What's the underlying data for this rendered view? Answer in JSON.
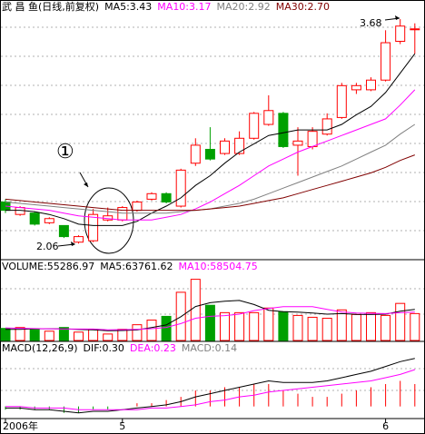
{
  "chart_data": [
    {
      "type": "candlestick",
      "title": "武 昌 鱼(日线,前复权)",
      "categories": [
        "2006年",
        null,
        null,
        null,
        null,
        null,
        null,
        null,
        "5",
        null,
        null,
        null,
        null,
        null,
        null,
        null,
        null,
        null,
        null,
        null,
        null,
        null,
        null,
        null,
        null,
        null,
        "6",
        null,
        null
      ],
      "open": [
        2.36,
        2.27,
        2.28,
        2.21,
        2.19,
        2.07,
        2.08,
        2.23,
        2.23,
        2.3,
        2.38,
        2.42,
        2.33,
        2.64,
        2.74,
        2.71,
        2.71,
        2.82,
        2.92,
        3.0,
        2.77,
        2.76,
        2.85,
        2.97,
        3.17,
        3.17,
        3.24,
        3.52,
        3.61
      ],
      "close": [
        2.3,
        2.32,
        2.2,
        2.24,
        2.11,
        2.11,
        2.27,
        2.26,
        2.32,
        2.36,
        2.42,
        2.36,
        2.59,
        2.77,
        2.67,
        2.8,
        2.82,
        3.0,
        3.02,
        2.76,
        2.8,
        2.87,
        2.96,
        3.2,
        3.2,
        3.24,
        3.51,
        3.63,
        3.61
      ],
      "high": [
        2.38,
        2.33,
        2.29,
        2.25,
        2.19,
        2.12,
        2.31,
        2.32,
        2.33,
        2.37,
        2.43,
        2.43,
        2.6,
        2.82,
        2.9,
        2.82,
        2.87,
        3.01,
        3.13,
        3.01,
        2.9,
        2.9,
        3.0,
        3.22,
        3.22,
        3.26,
        3.6,
        3.68,
        3.65
      ],
      "low": [
        2.28,
        2.26,
        2.19,
        2.2,
        2.1,
        2.06,
        2.07,
        2.22,
        2.22,
        2.29,
        2.37,
        2.35,
        2.32,
        2.62,
        2.66,
        2.7,
        2.7,
        2.81,
        2.91,
        2.75,
        2.55,
        2.74,
        2.84,
        2.96,
        3.14,
        3.16,
        3.23,
        3.5,
        3.43
      ],
      "up_color": "#ff0000",
      "down_color": "#00a000",
      "series": [
        {
          "name": "MA5:3.43",
          "color": "#000000",
          "values": [
            2.3,
            2.3,
            2.29,
            2.27,
            2.24,
            2.2,
            2.19,
            2.19,
            2.19,
            2.22,
            2.28,
            2.33,
            2.39,
            2.48,
            2.55,
            2.64,
            2.72,
            2.78,
            2.84,
            2.86,
            2.88,
            2.88,
            2.88,
            2.92,
            2.99,
            3.05,
            3.15,
            3.29,
            3.43
          ]
        },
        {
          "name": "MA10:3.17",
          "color": "#ff00ff",
          "values": [
            2.33,
            2.32,
            2.31,
            2.3,
            2.28,
            2.26,
            2.25,
            2.24,
            2.23,
            2.23,
            2.23,
            2.25,
            2.27,
            2.31,
            2.36,
            2.42,
            2.48,
            2.55,
            2.62,
            2.67,
            2.72,
            2.76,
            2.8,
            2.84,
            2.88,
            2.92,
            2.96,
            3.06,
            3.17
          ]
        },
        {
          "name": "MA20:2.92",
          "color": "#808080",
          "values": [
            2.36,
            2.35,
            2.34,
            2.33,
            2.32,
            2.31,
            2.3,
            2.29,
            2.28,
            2.28,
            2.28,
            2.28,
            2.29,
            2.3,
            2.31,
            2.33,
            2.35,
            2.38,
            2.42,
            2.46,
            2.5,
            2.54,
            2.58,
            2.62,
            2.67,
            2.72,
            2.77,
            2.85,
            2.92
          ]
        },
        {
          "name": "MA30:2.70",
          "color": "#800000",
          "values": [
            2.38,
            2.37,
            2.36,
            2.35,
            2.34,
            2.33,
            2.32,
            2.31,
            2.3,
            2.3,
            2.3,
            2.3,
            2.3,
            2.3,
            2.31,
            2.32,
            2.33,
            2.35,
            2.37,
            2.39,
            2.42,
            2.45,
            2.48,
            2.51,
            2.54,
            2.57,
            2.61,
            2.66,
            2.7
          ]
        }
      ],
      "ylim": [
        1.95,
        3.72
      ],
      "annotations": [
        "①",
        "3.68",
        "2.06"
      ]
    },
    {
      "type": "bar",
      "title": "VOLUME:55286.97",
      "values": [
        24800,
        26700,
        22900,
        19100,
        26700,
        17200,
        22900,
        13300,
        22900,
        32400,
        41900,
        49600,
        99100,
        125800,
        72400,
        57200,
        57200,
        57200,
        66700,
        59100,
        51500,
        47700,
        45700,
        62900,
        53400,
        57200,
        51500,
        76200,
        55286.97
      ],
      "series": [
        {
          "name": "MA5:63761.62",
          "color": "#000000",
          "values": [
            23000,
            23000,
            24000,
            24000,
            24000,
            22500,
            21800,
            20000,
            20600,
            21700,
            26700,
            32000,
            49000,
            69800,
            77700,
            80700,
            82300,
            73900,
            62100,
            59400,
            58300,
            56400,
            54100,
            55200,
            53700,
            53400,
            54100,
            60200,
            63761.62
          ]
        },
        {
          "name": "MA10:58504.75",
          "color": "#ff00ff",
          "values": [
            26000,
            25000,
            24500,
            24000,
            23500,
            23500,
            23500,
            22000,
            22300,
            22900,
            24200,
            26800,
            34800,
            45700,
            49600,
            51200,
            54100,
            61500,
            65900,
            69500,
            69500,
            69400,
            64000,
            58600,
            56600,
            55900,
            55200,
            57100,
            58504.75
          ]
        }
      ],
      "ylim": [
        0,
        140000
      ]
    },
    {
      "type": "macd",
      "title": "MACD(12,26,9)",
      "series": [
        {
          "name": "DIF:0.30",
          "color": "#000000",
          "values": [
            -0.01,
            -0.01,
            -0.02,
            -0.02,
            -0.03,
            -0.04,
            -0.03,
            -0.03,
            -0.02,
            -0.01,
            0.0,
            0.01,
            0.03,
            0.06,
            0.08,
            0.1,
            0.12,
            0.14,
            0.16,
            0.15,
            0.15,
            0.15,
            0.16,
            0.18,
            0.2,
            0.22,
            0.25,
            0.28,
            0.3
          ]
        },
        {
          "name": "DEA:0.23",
          "color": "#ff00ff",
          "values": [
            0.0,
            0.0,
            -0.01,
            -0.01,
            -0.01,
            -0.02,
            -0.02,
            -0.02,
            -0.02,
            -0.02,
            -0.01,
            -0.01,
            0.0,
            0.01,
            0.03,
            0.04,
            0.06,
            0.07,
            0.09,
            0.1,
            0.11,
            0.12,
            0.13,
            0.14,
            0.15,
            0.16,
            0.18,
            0.2,
            0.23
          ]
        }
      ],
      "histogram": {
        "name": "MACD:0.14",
        "color": "#808080",
        "values": [
          -0.02,
          -0.02,
          -0.02,
          -0.02,
          -0.04,
          -0.04,
          -0.02,
          -0.02,
          0.0,
          0.02,
          0.02,
          0.04,
          0.06,
          0.1,
          0.1,
          0.12,
          0.12,
          0.14,
          0.14,
          0.1,
          0.08,
          0.06,
          0.06,
          0.08,
          0.1,
          0.12,
          0.14,
          0.16,
          0.14
        ]
      },
      "ylim": [
        -0.07,
        0.35
      ]
    }
  ]
}
